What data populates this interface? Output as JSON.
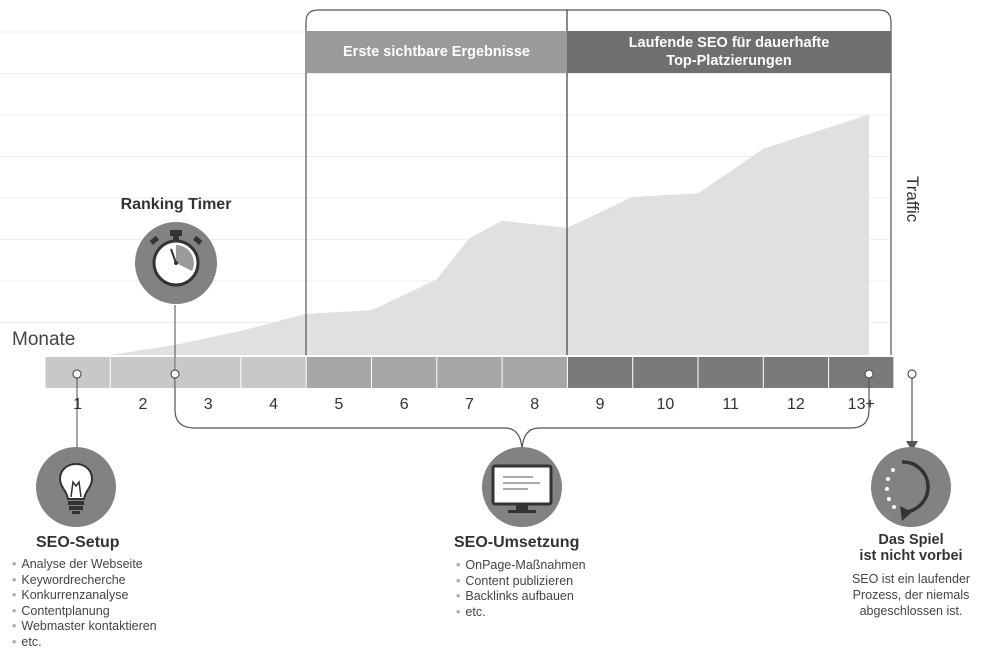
{
  "axis": {
    "x_label": "Monate",
    "y_label": "Traffic",
    "months": [
      "1",
      "2",
      "3",
      "4",
      "5",
      "6",
      "7",
      "8",
      "9",
      "10",
      "11",
      "12",
      "13+"
    ]
  },
  "phases": [
    {
      "label": "Erste sichtbare Ergebnisse"
    },
    {
      "label": "Laufende SEO für dauerhafte Top-Platzierungen"
    }
  ],
  "ranking_timer": {
    "title": "Ranking Timer",
    "icon": "stopwatch-icon"
  },
  "setup": {
    "title": "SEO-Setup",
    "icon": "lightbulb-icon",
    "items": [
      "Analyse der Webseite",
      "Keywordrecherche",
      "Konkurrenzanalyse",
      "Contentplanung",
      "Webmaster kontaktieren",
      "etc."
    ]
  },
  "umsetzung": {
    "title": "SEO-Umsetzung",
    "icon": "monitor-icon",
    "items": [
      "OnPage-Maßnahmen",
      "Content publizieren",
      "Backlinks aufbauen",
      "etc."
    ]
  },
  "spiel": {
    "title_line1": "Das Spiel",
    "title_line2": "ist nicht vorbei",
    "icon": "refresh-icon",
    "desc_line1": "SEO ist ein laufender",
    "desc_line2": "Prozess, der niemals",
    "desc_line3": "abgeschlossen ist."
  },
  "chart_data": {
    "type": "area",
    "x": [
      "2",
      "3",
      "4",
      "5",
      "6",
      "7",
      "7.5",
      "8",
      "9",
      "10",
      "11",
      "12",
      "13+"
    ],
    "values": [
      0,
      3,
      7,
      12,
      13,
      22,
      34,
      39,
      37,
      46,
      47,
      60,
      70
    ],
    "ylim": [
      0,
      80
    ],
    "series": [
      {
        "values": [
          0,
          3,
          7,
          12,
          13,
          22,
          34,
          39,
          37,
          46,
          47,
          60,
          70
        ]
      }
    ],
    "grid": true,
    "colors": {
      "area": "#e0e0e0",
      "timeline_light": "#c8c8c8",
      "timeline_mid": "#a6a6a6",
      "timeline_dark": "#7a7a7a",
      "phase_header_1": "#9a9a9a",
      "phase_header_2": "#6f6f6f",
      "icon_circle": "#828282"
    }
  }
}
